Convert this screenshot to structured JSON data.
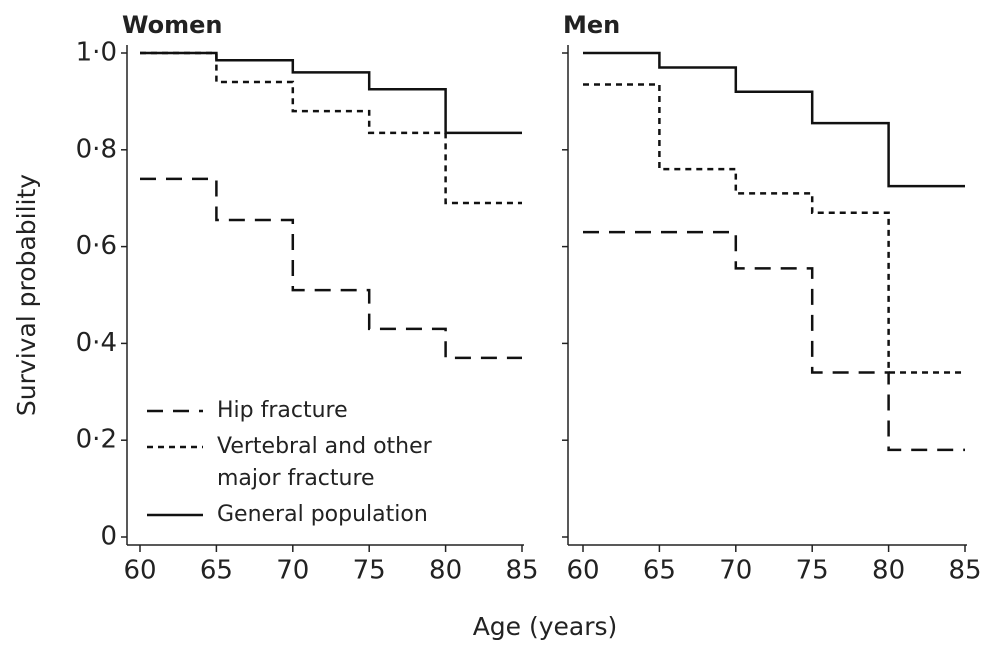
{
  "xlabel": "Age (years)",
  "ylabel": "Survival probability",
  "chart_data": [
    {
      "type": "line",
      "step": "post",
      "title": "Women",
      "x": [
        60,
        65,
        70,
        75,
        80
      ],
      "xlim": [
        60,
        85
      ],
      "xticks": [
        60,
        65,
        70,
        75,
        80,
        85
      ],
      "ylim": [
        0,
        1
      ],
      "yticks": [
        0,
        {
          "value": 0.2,
          "label": "0·2"
        },
        {
          "value": 0.4,
          "label": "0·4"
        },
        {
          "value": 0.6,
          "label": "0·6"
        },
        {
          "value": 0.8,
          "label": "0·8"
        },
        {
          "value": 1,
          "label": "1·0"
        }
      ],
      "show_ytick_labels": true,
      "legend": "lower left",
      "series": [
        {
          "name": "Hip fracture",
          "color": "#111111",
          "linestyle": "dashed",
          "values": [
            0.74,
            0.655,
            0.51,
            0.43,
            0.37
          ]
        },
        {
          "name": "Vertebral and other major fracture",
          "color": "#111111",
          "linestyle": "dotted",
          "values": [
            1.0,
            0.94,
            0.88,
            0.835,
            0.69
          ]
        },
        {
          "name": "General population",
          "color": "#111111",
          "linestyle": "solid",
          "values": [
            1.0,
            0.985,
            0.96,
            0.925,
            0.835
          ]
        }
      ]
    },
    {
      "type": "line",
      "step": "post",
      "title": "Men",
      "x": [
        60,
        65,
        70,
        75,
        80
      ],
      "xlim": [
        60,
        85
      ],
      "xticks": [
        60,
        65,
        70,
        75,
        80,
        85
      ],
      "ylim": [
        0,
        1
      ],
      "yticks": [
        0,
        0.2,
        0.4,
        0.6,
        0.8,
        1
      ],
      "show_ytick_labels": false,
      "series": [
        {
          "color": "#111111",
          "linestyle": "dashed",
          "values": [
            0.63,
            0.63,
            0.555,
            0.34,
            0.18
          ]
        },
        {
          "color": "#111111",
          "linestyle": "dotted",
          "values": [
            0.935,
            0.76,
            0.71,
            0.67,
            0.34
          ]
        },
        {
          "color": "#111111",
          "linestyle": "solid",
          "values": [
            1.0,
            0.97,
            0.92,
            0.855,
            0.725
          ]
        }
      ]
    }
  ]
}
